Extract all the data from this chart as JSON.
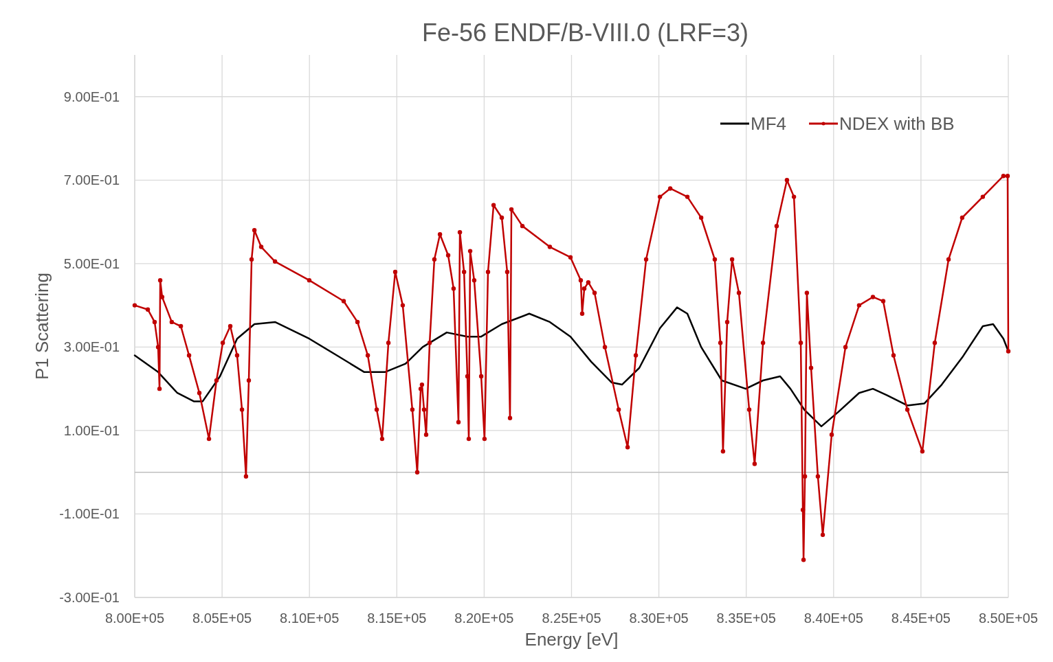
{
  "chart_data": {
    "type": "line",
    "title": "Fe-56 ENDF/B-VIII.0 (LRF=3)",
    "xlabel": "Energy [eV]",
    "ylabel": "P1 Scattering",
    "xlim": [
      800000,
      850000
    ],
    "xticks": [
      {
        "value": 800000,
        "label": "8.00E+05"
      },
      {
        "value": 805000,
        "label": "8.05E+05"
      },
      {
        "value": 810000,
        "label": "8.10E+05"
      },
      {
        "value": 815000,
        "label": "8.15E+05"
      },
      {
        "value": 820000,
        "label": "8.20E+05"
      },
      {
        "value": 825000,
        "label": "8.25E+05"
      },
      {
        "value": 830000,
        "label": "8.30E+05"
      },
      {
        "value": 835000,
        "label": "8.35E+05"
      },
      {
        "value": 840000,
        "label": "8.40E+05"
      },
      {
        "value": 845000,
        "label": "8.45E+05"
      },
      {
        "value": 850000,
        "label": "8.50E+05"
      }
    ],
    "ylim": [
      -0.3,
      1.0
    ],
    "yticks": [
      {
        "value": -0.3,
        "label": "-3.00E-01"
      },
      {
        "value": -0.1,
        "label": "-1.00E-01"
      },
      {
        "value": 0.1,
        "label": "1.00E-01"
      },
      {
        "value": 0.3,
        "label": "3.00E-01"
      },
      {
        "value": 0.5,
        "label": "5.00E-01"
      },
      {
        "value": 0.7,
        "label": "7.00E-01"
      },
      {
        "value": 0.9,
        "label": "9.00E-01"
      }
    ],
    "grid": true,
    "legend": "top right",
    "line_style": "solid",
    "ref_lines": [
      {
        "axis": "y",
        "value": 0,
        "color": "#bfbfbf"
      }
    ],
    "series": [
      {
        "name": "MF4",
        "color": "#000000",
        "marker": "none",
        "x": [
          800000,
          801340,
          802440,
          803380,
          803890,
          804880,
          805860,
          806850,
          808030,
          809990,
          811570,
          813140,
          814320,
          815500,
          816480,
          817860,
          819040,
          819830,
          821010,
          822580,
          823760,
          824940,
          826120,
          827300,
          827890,
          828880,
          830060,
          831040,
          831630,
          832420,
          833600,
          834970,
          835960,
          836940,
          837530,
          838320,
          839300,
          840280,
          841460,
          842250,
          843040,
          844220,
          845200,
          846190,
          847360,
          848540,
          849130,
          849720,
          850000
        ],
        "values": [
          0.28,
          0.24,
          0.19,
          0.17,
          0.17,
          0.23,
          0.32,
          0.355,
          0.36,
          0.32,
          0.28,
          0.24,
          0.24,
          0.26,
          0.3,
          0.335,
          0.325,
          0.325,
          0.355,
          0.38,
          0.36,
          0.325,
          0.265,
          0.215,
          0.21,
          0.25,
          0.345,
          0.395,
          0.38,
          0.3,
          0.22,
          0.2,
          0.22,
          0.23,
          0.2,
          0.15,
          0.11,
          0.145,
          0.19,
          0.2,
          0.185,
          0.16,
          0.165,
          0.21,
          0.275,
          0.35,
          0.355,
          0.32,
          0.29
        ]
      },
      {
        "name": "NDEX with BB",
        "color": "#c00000",
        "marker": "circle",
        "x": [
          800000,
          800750,
          801140,
          801340,
          801420,
          801460,
          801570,
          802120,
          802640,
          803110,
          803700,
          804250,
          804680,
          805040,
          805470,
          805860,
          806140,
          806370,
          806530,
          806690,
          806850,
          807240,
          808030,
          809990,
          811960,
          812750,
          813340,
          813850,
          814160,
          814520,
          814910,
          815340,
          815890,
          816170,
          816370,
          816440,
          816560,
          816680,
          816880,
          817150,
          817470,
          817940,
          818250,
          818530,
          818610,
          818850,
          819040,
          819120,
          819200,
          819430,
          819830,
          820020,
          820220,
          820540,
          821010,
          821320,
          821480,
          821560,
          822190,
          823760,
          824940,
          825530,
          825610,
          825730,
          825960,
          826320,
          826910,
          827700,
          828210,
          828680,
          829270,
          830060,
          830650,
          831630,
          832420,
          833200,
          833520,
          833670,
          833910,
          834190,
          834580,
          835170,
          835480,
          835960,
          836740,
          837330,
          837730,
          838120,
          838240,
          838280,
          838360,
          838470,
          838710,
          839100,
          839380,
          839890,
          840680,
          841460,
          842250,
          842840,
          843430,
          844220,
          845080,
          845790,
          846580,
          847360,
          848540,
          849720,
          849960,
          850000
        ],
        "values": [
          0.4,
          0.39,
          0.36,
          0.3,
          0.2,
          0.46,
          0.42,
          0.36,
          0.35,
          0.28,
          0.19,
          0.08,
          0.22,
          0.31,
          0.35,
          0.28,
          0.15,
          -0.01,
          0.22,
          0.51,
          0.58,
          0.54,
          0.505,
          0.46,
          0.41,
          0.36,
          0.28,
          0.15,
          0.08,
          0.31,
          0.48,
          0.4,
          0.15,
          0.0,
          0.2,
          0.21,
          0.15,
          0.09,
          0.31,
          0.51,
          0.57,
          0.52,
          0.44,
          0.12,
          0.575,
          0.48,
          0.23,
          0.08,
          0.53,
          0.46,
          0.23,
          0.08,
          0.48,
          0.64,
          0.61,
          0.48,
          0.13,
          0.63,
          0.59,
          0.54,
          0.515,
          0.46,
          0.38,
          0.44,
          0.455,
          0.43,
          0.3,
          0.15,
          0.06,
          0.28,
          0.51,
          0.66,
          0.68,
          0.66,
          0.61,
          0.51,
          0.31,
          0.05,
          0.36,
          0.51,
          0.43,
          0.15,
          0.02,
          0.31,
          0.59,
          0.7,
          0.66,
          0.31,
          -0.09,
          -0.21,
          -0.01,
          0.43,
          0.25,
          -0.01,
          -0.15,
          0.09,
          0.3,
          0.4,
          0.42,
          0.41,
          0.28,
          0.15,
          0.05,
          0.31,
          0.51,
          0.61,
          0.66,
          0.71,
          0.71,
          0.29
        ]
      }
    ]
  }
}
